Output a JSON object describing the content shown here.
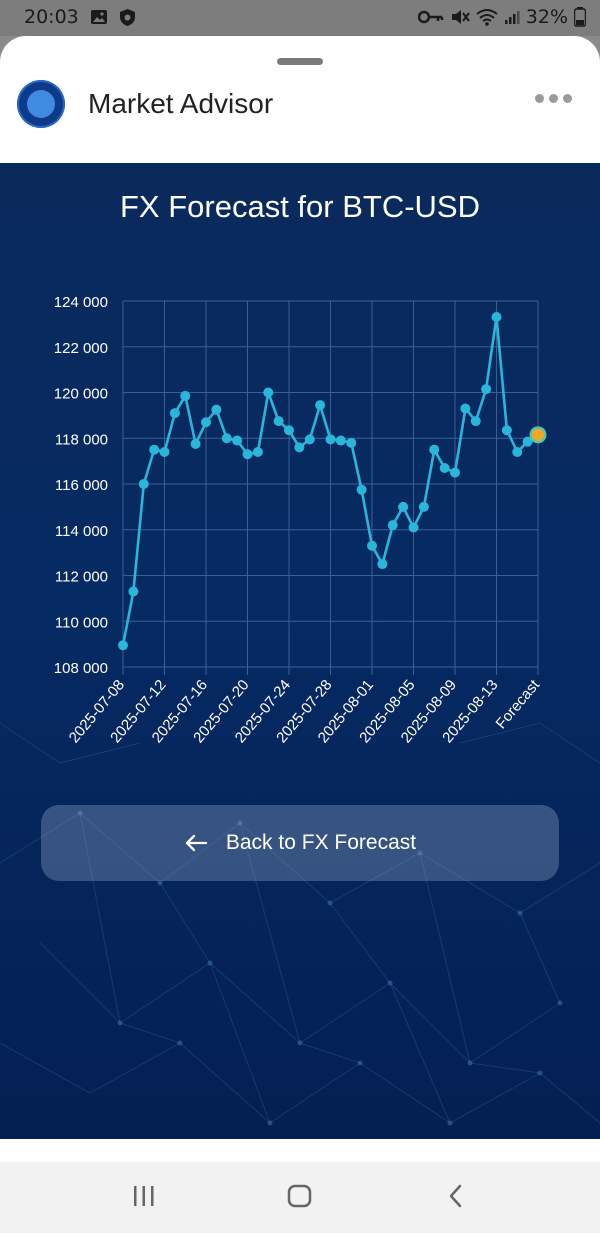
{
  "status_bar": {
    "time": "20:03",
    "battery": "32%"
  },
  "header": {
    "app_name": "Market Advisor"
  },
  "back_button": {
    "label": "Back to FX Forecast"
  },
  "chart_data": {
    "type": "line",
    "title": "FX Forecast for BTC-USD",
    "xlabel": "",
    "ylabel": "",
    "ylim": [
      108000,
      124000
    ],
    "y_ticks": [
      "124 000",
      "122 000",
      "120 000",
      "118 000",
      "116 000",
      "114 000",
      "112 000",
      "110 000",
      "108 000"
    ],
    "x_tick_labels": [
      "2025-07-08",
      "2025-07-12",
      "2025-07-16",
      "2025-07-20",
      "2025-07-24",
      "2025-07-28",
      "2025-08-01",
      "2025-08-05",
      "2025-08-09",
      "2025-08-13",
      "Forecast"
    ],
    "grid": true,
    "x": [
      "2025-07-08",
      "2025-07-09",
      "2025-07-10",
      "2025-07-11",
      "2025-07-12",
      "2025-07-13",
      "2025-07-14",
      "2025-07-15",
      "2025-07-16",
      "2025-07-17",
      "2025-07-18",
      "2025-07-19",
      "2025-07-20",
      "2025-07-21",
      "2025-07-22",
      "2025-07-23",
      "2025-07-24",
      "2025-07-25",
      "2025-07-26",
      "2025-07-27",
      "2025-07-28",
      "2025-07-29",
      "2025-07-30",
      "2025-07-31",
      "2025-08-01",
      "2025-08-02",
      "2025-08-03",
      "2025-08-04",
      "2025-08-05",
      "2025-08-06",
      "2025-08-07",
      "2025-08-08",
      "2025-08-09",
      "2025-08-10",
      "2025-08-11",
      "2025-08-12",
      "2025-08-13",
      "2025-08-14",
      "2025-08-15",
      "2025-08-16",
      "Forecast"
    ],
    "series": [
      {
        "values": [
          108950,
          111300,
          116000,
          117500,
          117400,
          119100,
          119850,
          117750,
          118700,
          119250,
          118000,
          117900,
          117300,
          117400,
          120000,
          118750,
          118350,
          117600,
          117950,
          119450,
          117950,
          117900,
          117800,
          115750,
          113300,
          112500,
          114200,
          115000,
          114100,
          115000,
          117500,
          116700,
          116500,
          119300,
          118750,
          120150,
          123300,
          118350,
          117400,
          117850,
          118150
        ]
      }
    ],
    "colors": {
      "line": "#29b6d8",
      "point": "#29b6d8",
      "forecast_point": "#f5a623",
      "forecast_ring": "#53c7a8",
      "grid": "#3a5f96",
      "label": "#ffffff"
    }
  }
}
